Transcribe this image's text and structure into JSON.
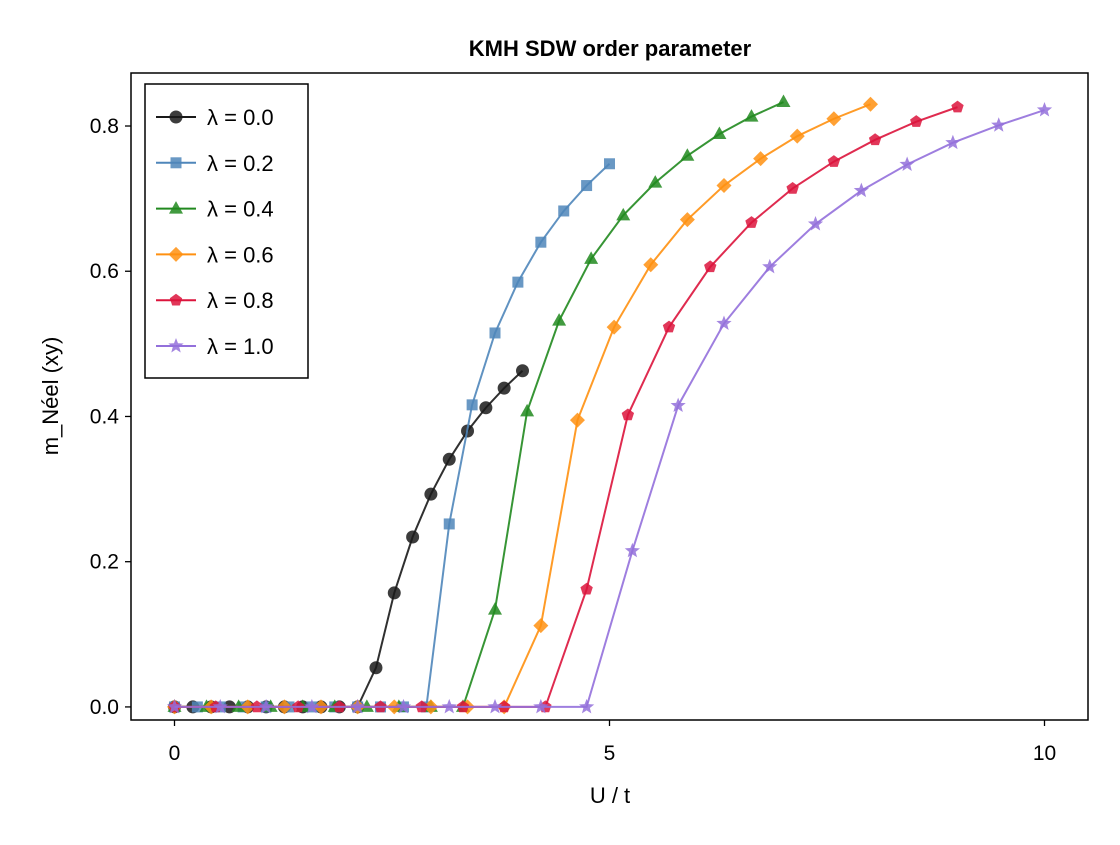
{
  "chart_data": {
    "type": "line",
    "title": "KMH SDW order parameter",
    "xlabel": "U / t",
    "ylabel": "m_Néel (xy)",
    "xlim": [
      -0.5,
      10.5
    ],
    "ylim": [
      -0.018,
      0.873
    ],
    "xticks": [
      0,
      5,
      10
    ],
    "xtick_labels": [
      "0",
      "5",
      "10"
    ],
    "yticks": [
      0.0,
      0.2,
      0.4,
      0.6,
      0.8
    ],
    "ytick_labels": [
      "0.0",
      "0.2",
      "0.4",
      "0.6",
      "0.8"
    ],
    "grid": false,
    "legend_position": "top-left",
    "series": [
      {
        "name": "λ = 0.0",
        "color": "#1a1a1a",
        "marker": "circle",
        "x": [
          0,
          0.211,
          0.421,
          0.632,
          0.842,
          1.053,
          1.263,
          1.474,
          1.684,
          1.895,
          2.105,
          2.316,
          2.526,
          2.737,
          2.947,
          3.158,
          3.368,
          3.579,
          3.789,
          4.0
        ],
        "y": [
          0,
          0,
          0,
          0,
          0,
          0,
          0,
          0,
          0,
          0,
          0,
          0.054,
          0.157,
          0.234,
          0.293,
          0.341,
          0.38,
          0.412,
          0.439,
          0.463
        ]
      },
      {
        "name": "λ = 0.2",
        "color": "#4f86ba",
        "marker": "square",
        "x": [
          0,
          0.263,
          0.526,
          0.789,
          1.053,
          1.316,
          1.579,
          1.842,
          2.105,
          2.368,
          2.632,
          2.895,
          3.158,
          3.421,
          3.684,
          3.947,
          4.211,
          4.474,
          4.737,
          5.0
        ],
        "y": [
          0,
          0,
          0,
          0,
          0,
          0,
          0,
          0,
          0,
          0,
          0,
          0,
          0.252,
          0.416,
          0.515,
          0.585,
          0.64,
          0.683,
          0.718,
          0.748
        ]
      },
      {
        "name": "λ = 0.4",
        "color": "#21891f",
        "marker": "triangle",
        "x": [
          0,
          0.368,
          0.737,
          1.105,
          1.474,
          1.842,
          2.211,
          2.579,
          2.947,
          3.316,
          3.684,
          4.053,
          4.421,
          4.789,
          5.158,
          5.526,
          5.895,
          6.263,
          6.632,
          7.0
        ],
        "y": [
          0,
          0,
          0,
          0,
          0,
          0,
          0,
          0,
          0,
          0,
          0.134,
          0.407,
          0.532,
          0.617,
          0.677,
          0.722,
          0.759,
          0.789,
          0.813,
          0.833
        ]
      },
      {
        "name": "λ = 0.6",
        "color": "#ff9010",
        "marker": "diamond",
        "x": [
          0,
          0.421,
          0.842,
          1.263,
          1.684,
          2.105,
          2.526,
          2.947,
          3.368,
          3.789,
          4.211,
          4.632,
          5.053,
          5.474,
          5.895,
          6.316,
          6.737,
          7.158,
          7.579,
          8.0
        ],
        "y": [
          0,
          0,
          0,
          0,
          0,
          0,
          0,
          0,
          0,
          0,
          0.112,
          0.395,
          0.523,
          0.609,
          0.671,
          0.718,
          0.755,
          0.786,
          0.81,
          0.83
        ]
      },
      {
        "name": "λ = 0.8",
        "color": "#dc143c",
        "marker": "pentagon",
        "x": [
          0,
          0.474,
          0.947,
          1.421,
          1.895,
          2.368,
          2.842,
          3.316,
          3.789,
          4.263,
          4.737,
          5.211,
          5.684,
          6.158,
          6.632,
          7.105,
          7.579,
          8.053,
          8.526,
          9.0
        ],
        "y": [
          0,
          0,
          0,
          0,
          0,
          0,
          0,
          0,
          0,
          0,
          0.162,
          0.402,
          0.523,
          0.606,
          0.667,
          0.714,
          0.751,
          0.781,
          0.806,
          0.826
        ]
      },
      {
        "name": "λ = 1.0",
        "color": "#9370db",
        "marker": "star",
        "x": [
          0,
          0.526,
          1.053,
          1.579,
          2.105,
          2.632,
          3.158,
          3.684,
          4.211,
          4.737,
          5.263,
          5.789,
          6.316,
          6.842,
          7.368,
          7.895,
          8.421,
          8.947,
          9.474,
          10.0
        ],
        "y": [
          0,
          0,
          0,
          0,
          0,
          0,
          0,
          0,
          0,
          0,
          0.215,
          0.415,
          0.528,
          0.606,
          0.665,
          0.711,
          0.747,
          0.777,
          0.801,
          0.822
        ]
      }
    ]
  }
}
